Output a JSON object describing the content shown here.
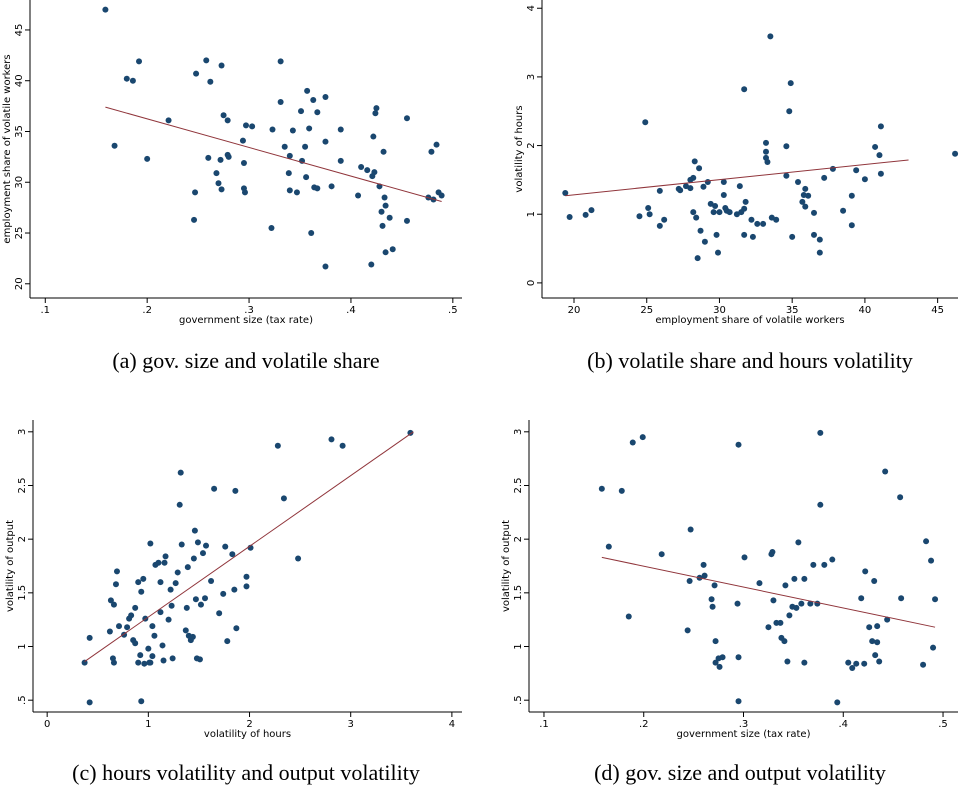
{
  "chart_data": [
    {
      "type": "scatter",
      "caption": "(a) gov. size and volatile share",
      "x_label": "government size (tax rate)",
      "y_label": "employment share of volatile workers",
      "color": "#1a476f",
      "x": [
        0.159,
        0.168,
        0.18,
        0.186,
        0.192,
        0.2,
        0.221,
        0.248,
        0.247,
        0.246,
        0.258,
        0.262,
        0.26,
        0.268,
        0.27,
        0.272,
        0.273,
        0.275,
        0.279,
        0.279,
        0.273,
        0.28,
        0.294,
        0.295,
        0.295,
        0.296,
        0.297,
        0.303,
        0.323,
        0.322,
        0.331,
        0.331,
        0.335,
        0.34,
        0.339,
        0.34,
        0.343,
        0.347,
        0.351,
        0.352,
        0.357,
        0.359,
        0.355,
        0.356,
        0.363,
        0.367,
        0.364,
        0.361,
        0.367,
        0.375,
        0.375,
        0.375,
        0.381,
        0.39,
        0.39,
        0.407,
        0.41,
        0.416,
        0.421,
        0.423,
        0.42,
        0.422,
        0.424,
        0.425,
        0.432,
        0.428,
        0.43,
        0.431,
        0.434,
        0.433,
        0.434,
        0.438,
        0.441,
        0.455,
        0.455,
        0.476,
        0.479,
        0.484,
        0.486,
        0.489,
        0.481
      ],
      "y": [
        47,
        33.6,
        40.2,
        40,
        41.9,
        32.3,
        36.1,
        40.7,
        29,
        26.3,
        42,
        39.9,
        32.4,
        30.9,
        29.9,
        32.2,
        41.5,
        36.6,
        36.1,
        32.7,
        29.3,
        32.5,
        34.1,
        31.9,
        29.4,
        29,
        35.6,
        35.5,
        35.2,
        25.5,
        37.9,
        41.9,
        33.5,
        32.6,
        30.9,
        29.2,
        35.1,
        29,
        37,
        32.1,
        39,
        35.3,
        33.5,
        30.5,
        38.1,
        36.9,
        29.5,
        25,
        29.4,
        21.7,
        38.4,
        34,
        29.6,
        35.2,
        32.1,
        28.7,
        31.5,
        31.2,
        30.6,
        31,
        21.9,
        34.5,
        36.8,
        37.3,
        33,
        29.6,
        27.1,
        25.7,
        27.7,
        28.5,
        23.1,
        26.5,
        23.4,
        26.2,
        36.3,
        28.5,
        33,
        33.7,
        29,
        28.7,
        28.3
      ],
      "fit": {
        "color": "#90353b",
        "x": [
          0.159,
          0.489
        ],
        "y": [
          37.4,
          28.1
        ]
      },
      "xlim": [
        0.085,
        0.509
      ],
      "ylim": [
        18.6,
        47.95
      ],
      "xticks": [
        {
          "value": 0.1,
          "label": ".1"
        },
        {
          "value": 0.2,
          "label": ".2"
        },
        {
          "value": 0.3,
          "label": ".3"
        },
        {
          "value": 0.4,
          "label": ".4"
        },
        {
          "value": 0.5,
          "label": ".5"
        }
      ],
      "yticks": [
        20,
        25,
        30,
        35,
        40,
        45
      ]
    },
    {
      "type": "scatter",
      "caption": "(b) volatile share and hours volatility",
      "x_label": "employment share of volatile workers",
      "y_label": "volatility of hours",
      "color": "#1a476f",
      "x": [
        19.4,
        19.7,
        20.8,
        21.2,
        24.5,
        24.9,
        25.1,
        25.2,
        25.9,
        25.9,
        26.2,
        27.2,
        27.3,
        27.7,
        28,
        28,
        28.2,
        28.3,
        28.2,
        28.4,
        28.6,
        28.5,
        28.7,
        28.9,
        29,
        29.2,
        29.4,
        29.6,
        29.7,
        29.8,
        29.9,
        30,
        30.3,
        30.3,
        30.4,
        30.5,
        30.7,
        31.2,
        31.5,
        31.4,
        31.7,
        31.7,
        31.8,
        31.7,
        32.2,
        32.3,
        32.6,
        33,
        33.2,
        33.2,
        33.2,
        33.3,
        33.5,
        33.6,
        33.9,
        34.6,
        34.6,
        34.8,
        34.9,
        35,
        35.4,
        35.7,
        35.8,
        35.9,
        35.9,
        36.1,
        36.5,
        36.5,
        36.9,
        36.9,
        37.2,
        37.8,
        38.5,
        39.1,
        39.1,
        39.4,
        40,
        40.7,
        41,
        41.1,
        41.1,
        46.2
      ],
      "y": [
        1.31,
        0.96,
        0.99,
        1.06,
        0.97,
        2.34,
        1.09,
        1,
        1.34,
        0.83,
        0.92,
        1.37,
        1.35,
        1.41,
        1.5,
        1.38,
        1.53,
        1.77,
        1.03,
        0.95,
        1.67,
        0.36,
        0.76,
        1.4,
        0.6,
        1.47,
        1.15,
        1.03,
        1.12,
        0.7,
        0.44,
        1.03,
        1.47,
        1.28,
        1.09,
        1.05,
        1.03,
        1,
        1.03,
        1.41,
        1.08,
        0.7,
        1.18,
        2.82,
        0.92,
        0.67,
        0.86,
        0.86,
        2.04,
        1.82,
        1.91,
        1.76,
        3.59,
        0.95,
        0.92,
        1.56,
        1.99,
        2.5,
        2.91,
        0.67,
        1.47,
        1.18,
        1.28,
        1.37,
        1.11,
        1.27,
        1.02,
        0.7,
        0.63,
        0.44,
        1.53,
        1.66,
        1.05,
        1.27,
        0.84,
        1.64,
        1.51,
        1.98,
        1.86,
        2.28,
        1.59,
        1.88
      ],
      "fit": {
        "color": "#90353b",
        "x": [
          19.4,
          43
        ],
        "y": [
          1.27,
          1.79
        ]
      },
      "xlim": [
        17.8,
        46.4
      ],
      "ylim": [
        -0.22,
        4.12
      ],
      "xticks": [
        20,
        25,
        30,
        35,
        40,
        45
      ],
      "yticks": [
        0,
        1,
        2,
        3,
        4
      ]
    },
    {
      "type": "scatter",
      "caption": "(c) hours volatility and output volatility",
      "x_label": "volatility of hours",
      "y_label": "volatility of output",
      "color": "#1a476f",
      "x": [
        0.37,
        0.42,
        0.42,
        0.62,
        0.65,
        0.66,
        0.63,
        0.66,
        0.68,
        0.69,
        0.71,
        0.76,
        0.79,
        0.81,
        0.83,
        0.85,
        0.87,
        0.87,
        0.9,
        0.9,
        0.92,
        0.93,
        0.93,
        0.95,
        0.96,
        0.97,
        1,
        1.01,
        1.02,
        1.02,
        1.04,
        1.04,
        1.06,
        1.07,
        1.1,
        1.12,
        1.12,
        1.14,
        1.15,
        1.16,
        1.17,
        1.2,
        1.22,
        1.23,
        1.24,
        1.27,
        1.29,
        1.31,
        1.32,
        1.33,
        1.37,
        1.38,
        1.39,
        1.4,
        1.42,
        1.44,
        1.45,
        1.46,
        1.47,
        1.48,
        1.49,
        1.51,
        1.52,
        1.54,
        1.56,
        1.57,
        1.62,
        1.65,
        1.7,
        1.74,
        1.76,
        1.78,
        1.83,
        1.85,
        1.86,
        1.87,
        1.97,
        1.97,
        2.01,
        2.28,
        2.34,
        2.48,
        2.81,
        2.92,
        3.59
      ],
      "y": [
        0.85,
        1.08,
        0.48,
        1.14,
        0.89,
        0.85,
        1.43,
        1.39,
        1.58,
        1.7,
        1.19,
        1.11,
        1.18,
        1.26,
        1.29,
        1.06,
        1.03,
        1.36,
        0.85,
        1.6,
        0.92,
        0.49,
        1.51,
        1.63,
        0.84,
        1.26,
        0.98,
        0.85,
        0.85,
        1.96,
        1.19,
        0.91,
        1.1,
        1.76,
        1.78,
        1.32,
        1.6,
        1.01,
        0.87,
        1.78,
        1.84,
        1.25,
        1.53,
        1.38,
        0.89,
        1.59,
        1.69,
        2.32,
        2.62,
        1.95,
        1.15,
        1.36,
        1.74,
        1.1,
        1.06,
        1.09,
        1.82,
        2.08,
        1.44,
        0.89,
        1.97,
        0.88,
        1.39,
        1.87,
        1.45,
        1.94,
        1.61,
        2.47,
        1.31,
        1.49,
        1.93,
        1.05,
        1.86,
        1.53,
        2.45,
        1.17,
        1.65,
        1.56,
        1.92,
        2.87,
        2.38,
        1.82,
        2.93,
        2.87,
        2.99
      ],
      "fit": {
        "color": "#90353b",
        "x": [
          0.37,
          3.62
        ],
        "y": [
          0.86,
          3
        ]
      },
      "xlim": [
        -0.14,
        4.1
      ],
      "ylim": [
        0.39,
        3.11
      ],
      "xticks": [
        0,
        1,
        2,
        3,
        4
      ],
      "yticks": [
        {
          "value": 0.5,
          "label": ".5"
        },
        1,
        1.5,
        2,
        2.5,
        3
      ]
    },
    {
      "type": "scatter",
      "caption": "(d) gov. size and output volatility",
      "x_label": "government size (tax rate)",
      "y_label": "volatility of output",
      "color": "#1a476f",
      "x": [
        0.158,
        0.165,
        0.178,
        0.185,
        0.189,
        0.199,
        0.218,
        0.244,
        0.246,
        0.247,
        0.256,
        0.261,
        0.26,
        0.268,
        0.269,
        0.271,
        0.272,
        0.272,
        0.275,
        0.276,
        0.279,
        0.294,
        0.295,
        0.295,
        0.295,
        0.301,
        0.316,
        0.325,
        0.328,
        0.329,
        0.33,
        0.333,
        0.337,
        0.338,
        0.341,
        0.342,
        0.344,
        0.346,
        0.349,
        0.351,
        0.353,
        0.355,
        0.358,
        0.361,
        0.361,
        0.367,
        0.37,
        0.374,
        0.377,
        0.377,
        0.381,
        0.389,
        0.394,
        0.405,
        0.409,
        0.413,
        0.418,
        0.421,
        0.422,
        0.426,
        0.429,
        0.431,
        0.432,
        0.434,
        0.434,
        0.436,
        0.442,
        0.444,
        0.457,
        0.458,
        0.48,
        0.483,
        0.488,
        0.49,
        0.492
      ],
      "y": [
        2.47,
        1.93,
        2.45,
        1.28,
        2.9,
        2.95,
        1.86,
        1.15,
        1.61,
        2.09,
        1.64,
        1.66,
        1.76,
        1.44,
        1.37,
        1.57,
        1.05,
        0.85,
        0.89,
        0.81,
        0.9,
        1.4,
        2.88,
        0.9,
        0.49,
        1.83,
        1.59,
        1.18,
        1.86,
        1.88,
        1.43,
        1.22,
        1.22,
        1.08,
        1.05,
        1.57,
        0.86,
        1.29,
        1.37,
        1.63,
        1.36,
        1.97,
        1.4,
        0.85,
        1.63,
        1.4,
        1.76,
        1.4,
        2.32,
        2.99,
        1.76,
        1.81,
        0.48,
        0.85,
        0.8,
        0.84,
        1.45,
        0.84,
        1.7,
        1.18,
        1.05,
        1.61,
        0.92,
        1.19,
        1.04,
        0.86,
        2.63,
        1.25,
        2.39,
        1.45,
        0.83,
        1.98,
        1.8,
        0.99,
        1.44
      ],
      "fit": {
        "color": "#90353b",
        "x": [
          0.158,
          0.492
        ],
        "y": [
          1.83,
          1.18
        ]
      },
      "xlim": [
        0.085,
        0.515
      ],
      "ylim": [
        0.39,
        3.11
      ],
      "xticks": [
        {
          "value": 0.1,
          "label": ".1"
        },
        {
          "value": 0.2,
          "label": ".2"
        },
        {
          "value": 0.3,
          "label": ".3"
        },
        {
          "value": 0.4,
          "label": ".4"
        },
        {
          "value": 0.5,
          "label": ".5"
        }
      ],
      "yticks": [
        {
          "value": 0.5,
          "label": ".5"
        },
        1,
        1.5,
        2,
        2.5,
        3
      ]
    }
  ]
}
